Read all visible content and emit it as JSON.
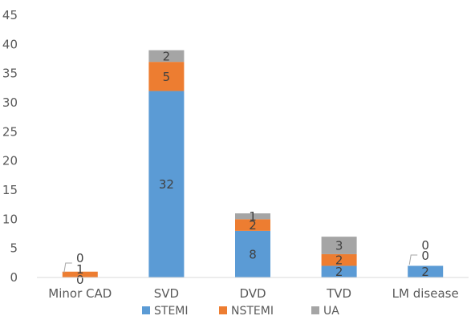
{
  "chart_data": {
    "type": "bar",
    "stacked": true,
    "categories": [
      "Minor CAD",
      "SVD",
      "DVD",
      "TVD",
      "LM disease"
    ],
    "series": [
      {
        "name": "STEMI",
        "values": [
          0,
          32,
          8,
          2,
          2
        ],
        "color": "#5B9BD5"
      },
      {
        "name": "NSTEMI",
        "values": [
          1,
          5,
          2,
          2,
          0
        ],
        "color": "#ED7D31"
      },
      {
        "name": "UA",
        "values": [
          0,
          2,
          1,
          3,
          0
        ],
        "color": "#A5A5A5"
      }
    ],
    "ylim": [
      0,
      45
    ],
    "yticks": [
      0,
      5,
      10,
      15,
      20,
      25,
      30,
      35,
      40,
      45
    ],
    "grid": false,
    "legend_position": "bottom",
    "data_labels": true
  }
}
